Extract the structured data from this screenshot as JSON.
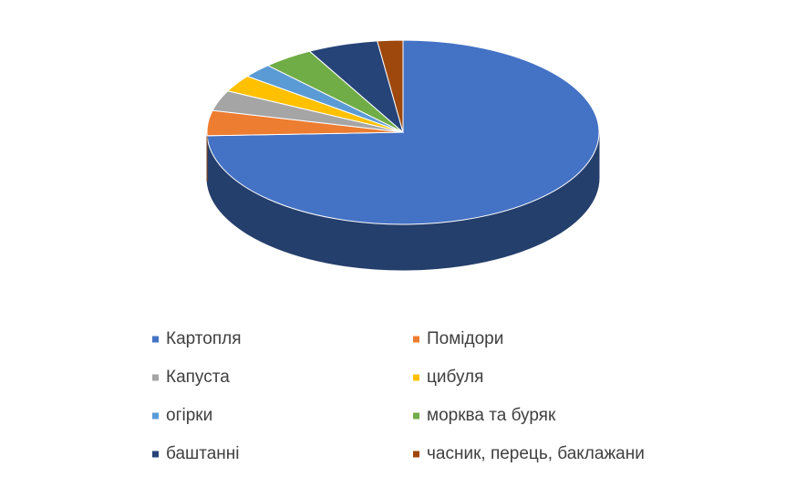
{
  "chart_data": {
    "type": "pie",
    "categories": [
      "Картопля",
      "Помідори",
      "Капуста",
      "цибуля",
      "огірки",
      "морква та буряк",
      "баштанні",
      "часник, перець, баклажани"
    ],
    "values": [
      74.4,
      4.4,
      3.6,
      3.0,
      2.5,
      4.2,
      5.8,
      2.1
    ],
    "colors": [
      "#4472c4",
      "#ed7d31",
      "#a5a5a5",
      "#ffc000",
      "#5b9bd5",
      "#70ad47",
      "#264478",
      "#9e480e"
    ],
    "legend": "bottom"
  }
}
